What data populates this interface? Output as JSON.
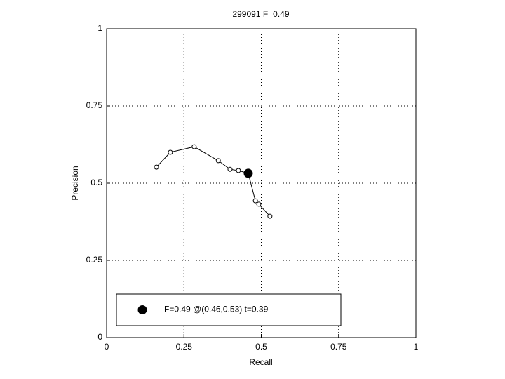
{
  "chart_data": {
    "type": "line",
    "title": "299091 F=0.49",
    "xlabel": "Recall",
    "ylabel": "Precision",
    "series": [
      {
        "color": "#000000",
        "marker": "open",
        "x": [
          0.161,
          0.206,
          0.283,
          0.361,
          0.399,
          0.426,
          0.458,
          0.481,
          0.492,
          0.528
        ],
        "values": [
          0.552,
          0.6,
          0.618,
          0.573,
          0.545,
          0.541,
          0.532,
          0.443,
          0.432,
          0.393
        ]
      },
      {
        "name": "F=0.49 @(0.46,0.53) t=0.39",
        "color": "#000000",
        "marker": "filled",
        "x": [
          0.458
        ],
        "values": [
          0.532
        ]
      }
    ],
    "xlim": [
      0,
      1
    ],
    "ylim": [
      0,
      1
    ],
    "xticks": [
      0,
      0.25,
      0.5,
      0.75,
      1
    ],
    "yticks": [
      0,
      0.25,
      0.5,
      0.75,
      1
    ],
    "grid": true,
    "legend": "lower left"
  }
}
